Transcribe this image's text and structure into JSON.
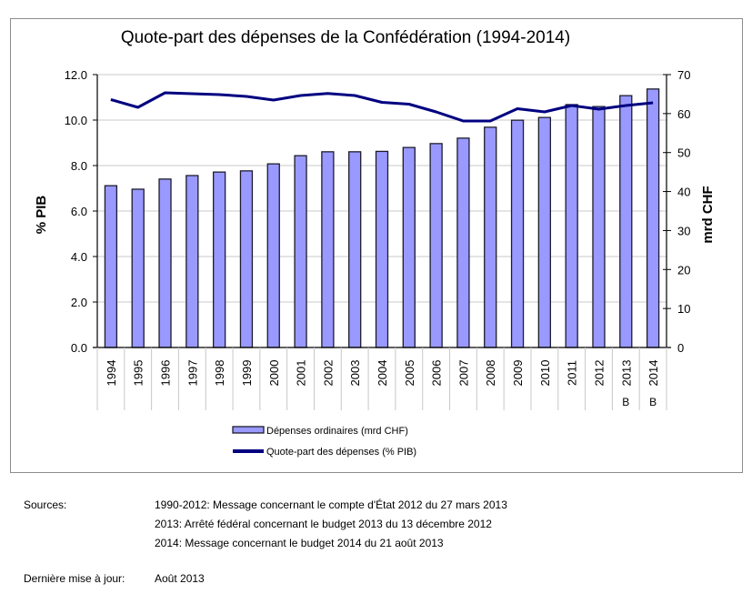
{
  "colors": {
    "bar_fill": "#9999ff",
    "bar_stroke": "#1c1c2c",
    "line": "#000080",
    "grid": "#c8c8c8",
    "axis": "#000000",
    "frame": "#8c8c8c"
  },
  "chart_data": {
    "type": "bar+line",
    "title": "Quote-part des dépenses de la Confédération (1994-2014)",
    "categories": [
      "1994",
      "1995",
      "1996",
      "1997",
      "1998",
      "1999",
      "2000",
      "2001",
      "2002",
      "2003",
      "2004",
      "2005",
      "2006",
      "2007",
      "2008",
      "2009",
      "2010",
      "2011",
      "2012",
      "2013",
      "2014"
    ],
    "category_notes": [
      "",
      "",
      "",
      "",
      "",
      "",
      "",
      "",
      "",
      "",
      "",
      "",
      "",
      "",
      "",
      "",
      "",
      "",
      "",
      "B",
      "B"
    ],
    "y_left": {
      "label": "% PIB",
      "range": [
        0,
        12
      ],
      "ticks": [
        "0.0",
        "2.0",
        "4.0",
        "6.0",
        "8.0",
        "10.0",
        "12.0"
      ],
      "tick_values": [
        0,
        2,
        4,
        6,
        8,
        10,
        12
      ]
    },
    "y_right": {
      "label": "mrd CHF",
      "range": [
        0,
        70
      ],
      "ticks": [
        "0",
        "10",
        "20",
        "30",
        "40",
        "50",
        "60",
        "70"
      ],
      "tick_values": [
        0,
        10,
        20,
        30,
        40,
        50,
        60,
        70
      ]
    },
    "grid": true,
    "legend_position": "bottom",
    "series": [
      {
        "name": "Dépenses ordinaires (mrd CHF)",
        "type": "bar",
        "axis": "right",
        "values": [
          41.5,
          40.6,
          43.2,
          44.1,
          45.0,
          45.3,
          47.1,
          49.2,
          50.2,
          50.2,
          50.3,
          51.3,
          52.3,
          53.7,
          56.5,
          58.3,
          59.0,
          62.3,
          61.8,
          64.6,
          66.3
        ]
      },
      {
        "name": "Quote-part des dépenses (% PIB)",
        "type": "line",
        "axis": "left",
        "values": [
          10.9,
          10.56,
          11.2,
          11.16,
          11.12,
          11.04,
          10.88,
          11.08,
          11.17,
          11.08,
          10.78,
          10.7,
          10.36,
          9.96,
          9.96,
          10.5,
          10.36,
          10.64,
          10.48,
          10.64,
          10.76
        ]
      }
    ]
  },
  "footer": {
    "sources_label": "Sources:",
    "sources": [
      "1990-2012: Message concernant le compte d'État 2012 du 27 mars 2013",
      "2013: Arrêté fédéral concernant le budget 2013 du 13 décembre 2012",
      "2014: Message concernant le budget 2014 du 21 août 2013"
    ],
    "updated_label": "Dernière mise à jour:",
    "updated_value": "Août 2013"
  }
}
